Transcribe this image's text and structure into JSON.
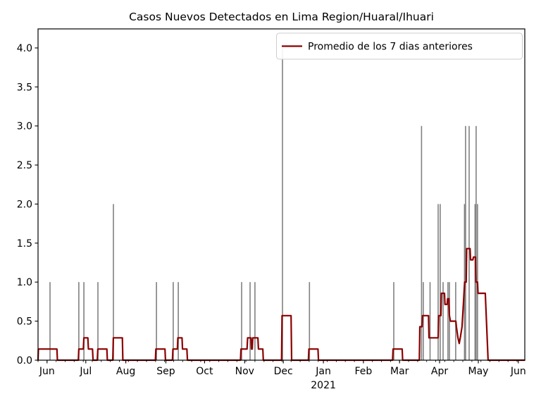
{
  "title": "Casos Nuevos Detectados en Lima Region/Huaral/Ihuari",
  "legend": {
    "label": "Promedio de los 7 dias anteriores"
  },
  "colors": {
    "bar": "#808080",
    "average_line": "#8b0000",
    "spine": "#000000",
    "tick_text": "#000000",
    "legend_border": "#cccccc",
    "legend_background": "#ffffff",
    "plot_background": "#ffffff"
  },
  "chart_data": {
    "type": "bar",
    "description": "Daily new detected cases (gray bars) with 7-day trailing average line (dark red). X axis is dates from Jun 2020 to Jun 2021, expressed here as days since 2020-06-01.",
    "x_unit": "days since 2020-06-01",
    "x_domain": [
      -7,
      370
    ],
    "y_domain": [
      0,
      4.2435
    ],
    "grid": false,
    "legend_position": "upper right",
    "y_ticks": [
      {
        "v": 0.0,
        "label": "0.0"
      },
      {
        "v": 0.5,
        "label": "0.5"
      },
      {
        "v": 1.0,
        "label": "1.0"
      },
      {
        "v": 1.5,
        "label": "1.5"
      },
      {
        "v": 2.0,
        "label": "2.0"
      },
      {
        "v": 2.5,
        "label": "2.5"
      },
      {
        "v": 3.0,
        "label": "3.0"
      },
      {
        "v": 3.5,
        "label": "3.5"
      },
      {
        "v": 4.0,
        "label": "4.0"
      }
    ],
    "x_ticks": [
      {
        "d": 0,
        "label": "Jun"
      },
      {
        "d": 30,
        "label": "Jul"
      },
      {
        "d": 61,
        "label": "Aug"
      },
      {
        "d": 92,
        "label": "Sep"
      },
      {
        "d": 122,
        "label": "Oct"
      },
      {
        "d": 153,
        "label": "Nov"
      },
      {
        "d": 183,
        "label": "Dec"
      },
      {
        "d": 214,
        "label": "Jan",
        "sublabel": "2021"
      },
      {
        "d": 245,
        "label": "Feb"
      },
      {
        "d": 273,
        "label": "Mar"
      },
      {
        "d": 304,
        "label": "Apr"
      },
      {
        "d": 334,
        "label": "May"
      },
      {
        "d": 365,
        "label": "Jun"
      }
    ],
    "x_minor_tick_step_days": 7,
    "bars": [
      [
        2.3,
        1
      ],
      [
        24.6,
        1
      ],
      [
        28.5,
        1
      ],
      [
        39.4,
        1
      ],
      [
        51.4,
        2
      ],
      [
        84.7,
        1
      ],
      [
        97.7,
        1
      ],
      [
        101.6,
        1
      ],
      [
        150.7,
        1
      ],
      [
        157.2,
        1
      ],
      [
        161.0,
        1
      ],
      [
        182.3,
        4
      ],
      [
        203.2,
        1
      ],
      [
        268.5,
        1
      ],
      [
        290.0,
        3
      ],
      [
        291.4,
        1
      ],
      [
        296.6,
        1
      ],
      [
        302.9,
        2
      ],
      [
        304.5,
        2
      ],
      [
        306.7,
        1
      ],
      [
        310.5,
        1
      ],
      [
        311.6,
        1
      ],
      [
        316.5,
        1
      ],
      [
        323.3,
        2
      ],
      [
        324.1,
        3
      ],
      [
        326.9,
        3
      ],
      [
        331.5,
        2
      ],
      [
        332.3,
        3
      ],
      [
        333.4,
        2
      ]
    ],
    "average_line_points": [
      [
        -7.0,
        0
      ],
      [
        -6.7,
        0.143
      ],
      [
        7.6,
        0.143
      ],
      [
        8.0,
        0
      ],
      [
        24.2,
        0
      ],
      [
        24.6,
        0.143
      ],
      [
        28.1,
        0.143
      ],
      [
        28.5,
        0.286
      ],
      [
        31.6,
        0.286
      ],
      [
        32.0,
        0.143
      ],
      [
        35.2,
        0.143
      ],
      [
        35.6,
        0
      ],
      [
        38.9,
        0
      ],
      [
        39.3,
        0.143
      ],
      [
        46.3,
        0.143
      ],
      [
        46.7,
        0
      ],
      [
        50.9,
        0
      ],
      [
        51.3,
        0.286
      ],
      [
        58.3,
        0.286
      ],
      [
        58.7,
        0
      ],
      [
        83.9,
        0
      ],
      [
        84.3,
        0.143
      ],
      [
        91.3,
        0.143
      ],
      [
        91.7,
        0
      ],
      [
        97.1,
        0
      ],
      [
        97.5,
        0.143
      ],
      [
        100.9,
        0.143
      ],
      [
        101.3,
        0.286
      ],
      [
        104.5,
        0.286
      ],
      [
        104.9,
        0.143
      ],
      [
        108.3,
        0.143
      ],
      [
        108.7,
        0
      ],
      [
        149.8,
        0
      ],
      [
        150.2,
        0.143
      ],
      [
        154.9,
        0.143
      ],
      [
        155.3,
        0.286
      ],
      [
        157.9,
        0.286
      ],
      [
        158.3,
        0.143
      ],
      [
        158.9,
        0.143
      ],
      [
        159.3,
        0.286
      ],
      [
        163.3,
        0.286
      ],
      [
        163.7,
        0.143
      ],
      [
        167.1,
        0.143
      ],
      [
        167.5,
        0
      ],
      [
        181.6,
        0
      ],
      [
        182.0,
        0.571
      ],
      [
        189.0,
        0.571
      ],
      [
        189.4,
        0
      ],
      [
        202.4,
        0
      ],
      [
        202.8,
        0.143
      ],
      [
        209.8,
        0.143
      ],
      [
        210.2,
        0
      ],
      [
        267.6,
        0
      ],
      [
        268.0,
        0.143
      ],
      [
        275.0,
        0.143
      ],
      [
        275.4,
        0
      ],
      [
        288.3,
        0
      ],
      [
        288.7,
        0.429
      ],
      [
        290.4,
        0.429
      ],
      [
        290.8,
        0.571
      ],
      [
        295.4,
        0.571
      ],
      [
        295.8,
        0.286
      ],
      [
        302.9,
        0.286
      ],
      [
        303.3,
        0.571
      ],
      [
        305.0,
        0.571
      ],
      [
        305.4,
        0.857
      ],
      [
        307.8,
        0.857
      ],
      [
        308.2,
        0.714
      ],
      [
        309.8,
        0.714
      ],
      [
        310.2,
        0.786
      ],
      [
        311.2,
        0.786
      ],
      [
        311.6,
        0.571
      ],
      [
        312.4,
        0.5
      ],
      [
        316.6,
        0.5
      ],
      [
        317.0,
        0.429
      ],
      [
        318.2,
        0.286
      ],
      [
        319.2,
        0.214
      ],
      [
        320.0,
        0.286
      ],
      [
        321.4,
        0.429
      ],
      [
        322.4,
        0.714
      ],
      [
        323.4,
        1.0
      ],
      [
        324.6,
        1.0
      ],
      [
        325.0,
        1.429
      ],
      [
        327.6,
        1.429
      ],
      [
        328.0,
        1.286
      ],
      [
        329.8,
        1.286
      ],
      [
        330.2,
        1.321
      ],
      [
        331.8,
        1.321
      ],
      [
        332.2,
        1.0
      ],
      [
        333.4,
        1.0
      ],
      [
        333.8,
        0.857
      ],
      [
        339.4,
        0.857
      ],
      [
        341.6,
        0
      ],
      [
        369.8,
        0
      ]
    ]
  }
}
